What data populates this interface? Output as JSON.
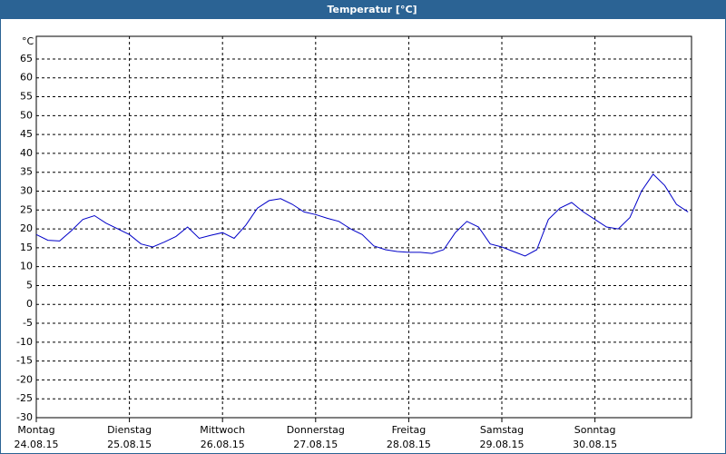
{
  "chart_data": {
    "type": "line",
    "title": "Temperatur [°C]",
    "y_unit": "°C",
    "days": [
      {
        "name": "Montag",
        "date": "24.08.15"
      },
      {
        "name": "Dienstag",
        "date": "25.08.15"
      },
      {
        "name": "Mittwoch",
        "date": "26.08.15"
      },
      {
        "name": "Donnerstag",
        "date": "27.08.15"
      },
      {
        "name": "Freitag",
        "date": "28.08.15"
      },
      {
        "name": "Samstag",
        "date": "29.08.15"
      },
      {
        "name": "Sonntag",
        "date": "30.08.15"
      }
    ],
    "color": "#0000c8",
    "values": [
      18.5,
      17,
      16.8,
      19.5,
      22.5,
      23.5,
      21.5,
      20,
      18.5,
      16,
      15.2,
      16.5,
      18,
      20.5,
      17.5,
      18.3,
      19,
      17.5,
      21,
      25.5,
      27.5,
      28,
      26.5,
      24.5,
      23.8,
      22.8,
      22,
      20,
      18.5,
      15.5,
      14.5,
      14,
      13.8,
      13.8,
      13.5,
      14.5,
      19,
      22,
      20.5,
      16,
      15.2,
      14,
      12.8,
      14.5,
      22.5,
      25.5,
      27,
      24.5,
      22.5,
      20.5,
      20,
      23,
      30,
      34.5,
      31.5,
      26.5,
      24.5
    ],
    "ylim": [
      -30,
      71
    ],
    "yticks": [
      -30,
      -25,
      -20,
      -15,
      -10,
      -5,
      0,
      5,
      10,
      15,
      20,
      25,
      30,
      35,
      40,
      45,
      50,
      55,
      60,
      65
    ],
    "grid": true
  }
}
